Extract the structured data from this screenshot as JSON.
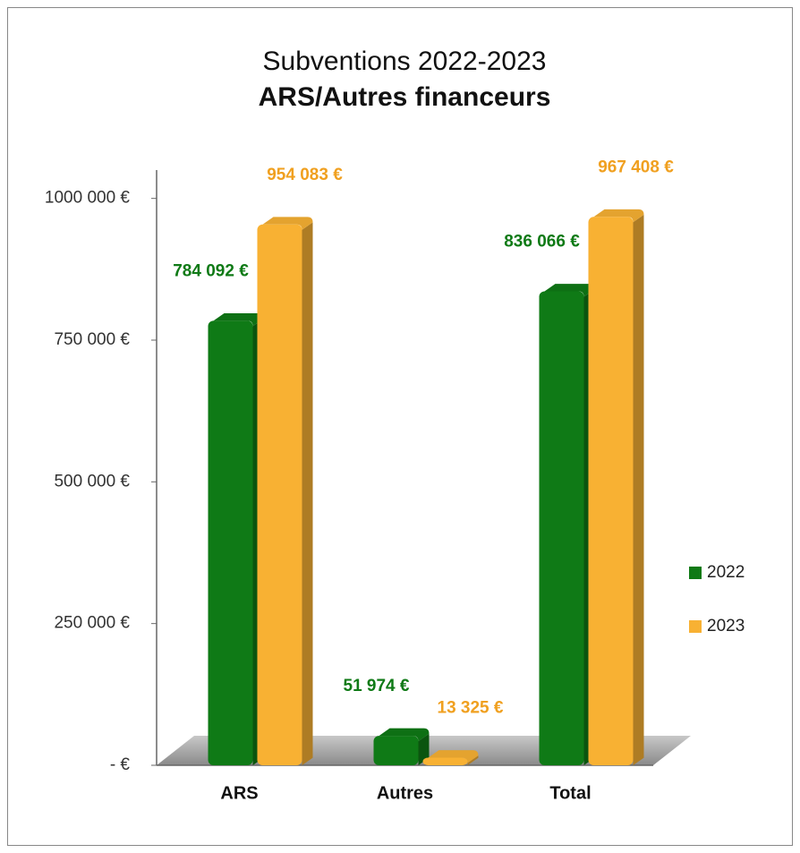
{
  "chart_data": {
    "type": "bar",
    "title": "Subventions 2022-2023",
    "subtitle": "ARS/Autres financeurs",
    "categories": [
      "ARS",
      "Autres",
      "Total"
    ],
    "series": [
      {
        "name": "2022",
        "color": "#0f7a16",
        "values": [
          784092,
          51974,
          836066
        ],
        "value_labels": [
          "784 092 €",
          "51 974 €",
          "836 066 €"
        ]
      },
      {
        "name": "2023",
        "color": "#f8b133",
        "values": [
          954083,
          13325,
          967408
        ],
        "value_labels": [
          "954 083 €",
          "13 325 €",
          "967 408 €"
        ]
      }
    ],
    "ylim": [
      0,
      1050000
    ],
    "yticks": [
      {
        "value": 0,
        "label": "-  €"
      },
      {
        "value": 250000,
        "label": "250 000 €"
      },
      {
        "value": 500000,
        "label": "500 000 €"
      },
      {
        "value": 750000,
        "label": "750 000 €"
      },
      {
        "value": 1000000,
        "label": "1000 000 €"
      }
    ],
    "legend": "right"
  }
}
